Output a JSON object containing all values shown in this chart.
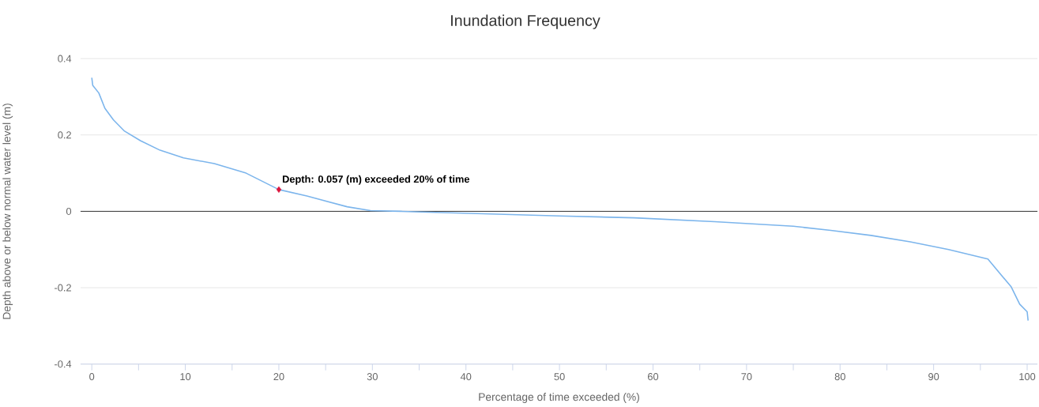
{
  "chart_data": {
    "type": "line",
    "title": "Inundation Frequency",
    "xlabel": "Percentage of time exceeded (%)",
    "ylabel": "Depth above or below normal water level (m)",
    "xlim": [
      -1.2,
      101.1
    ],
    "ylim": [
      -0.4,
      0.4
    ],
    "xticks": [
      0,
      {
        "value": 5,
        "label": null
      },
      10,
      {
        "value": 15,
        "label": null
      },
      20,
      {
        "value": 25,
        "label": null
      },
      30,
      {
        "value": 35,
        "label": null
      },
      40,
      {
        "value": 45,
        "label": null
      },
      50,
      {
        "value": 55,
        "label": null
      },
      60,
      {
        "value": 65,
        "label": null
      },
      70,
      {
        "value": 75,
        "label": null
      },
      80,
      {
        "value": 85,
        "label": null
      },
      90,
      {
        "value": 95,
        "label": null
      },
      100
    ],
    "yticks": [
      -0.4,
      -0.2,
      0,
      0.2,
      0.4
    ],
    "grid": "y",
    "series": [
      {
        "color": "#7cb5ec",
        "marker": "none",
        "x": [
          0,
          0.1,
          0.75,
          1.4,
          2.3,
          3.5,
          5.2,
          7.3,
          9.8,
          13.1,
          16.5,
          20,
          23,
          27.3,
          29.8,
          33,
          41.5,
          50,
          58,
          66.6,
          75,
          79,
          83.3,
          87.5,
          91.6,
          95.8,
          98.3,
          99.2,
          100,
          100.1
        ],
        "values": [
          0.35,
          0.33,
          0.31,
          0.27,
          0.24,
          0.21,
          0.185,
          0.16,
          0.14,
          0.125,
          0.1,
          0.057,
          0.04,
          0.012,
          0.002,
          0,
          -0.006,
          -0.012,
          -0.017,
          -0.027,
          -0.039,
          -0.05,
          -0.063,
          -0.08,
          -0.1,
          -0.125,
          -0.198,
          -0.243,
          -0.263,
          -0.286
        ]
      },
      {
        "type": "scatter",
        "color": "#dc143c",
        "marker": "diamond",
        "x": [
          20
        ],
        "values": [
          0.057
        ]
      }
    ],
    "ref_lines": [
      {
        "axis": "y",
        "value": 0,
        "color": "#333333"
      }
    ],
    "annotations": [
      {
        "text": "Depth: 0.057 (m) exceeded 20% of time",
        "x": 20,
        "y": 0.057
      }
    ]
  }
}
